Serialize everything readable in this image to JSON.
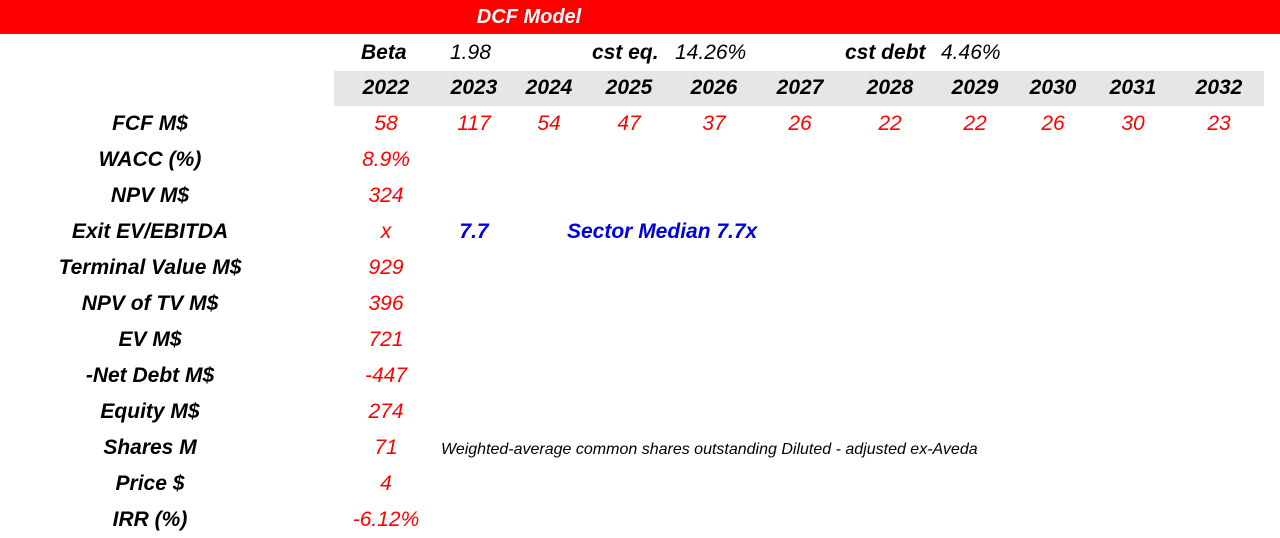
{
  "title": "DCF Model",
  "params": {
    "beta_label": "Beta",
    "beta_value": "1.98",
    "cost_equity_label": "cst eq.",
    "cost_equity_value": "14.26%",
    "cost_debt_label": "cst debt",
    "cost_debt_value": "4.46%"
  },
  "years": [
    "2022",
    "2023",
    "2024",
    "2025",
    "2026",
    "2027",
    "2028",
    "2029",
    "2030",
    "2031",
    "2032"
  ],
  "fcf": {
    "label": "FCF M$",
    "values": [
      "58",
      "117",
      "54",
      "47",
      "37",
      "26",
      "22",
      "22",
      "26",
      "30",
      "23"
    ]
  },
  "rows": {
    "wacc": {
      "label": "WACC (%)",
      "value": "8.9%"
    },
    "npv": {
      "label": "NPV M$",
      "value": "324"
    },
    "exit_multiple": {
      "label": "Exit EV/EBITDA",
      "value": "x",
      "multiple": "7.7",
      "note": "Sector Median 7.7x"
    },
    "terminal_value": {
      "label": "Terminal Value M$",
      "value": "929"
    },
    "npv_tv": {
      "label": "NPV of TV M$",
      "value": "396"
    },
    "ev": {
      "label": "EV M$",
      "value": "721"
    },
    "net_debt": {
      "label": "-Net Debt M$",
      "value": "-447"
    },
    "equity": {
      "label": "Equity M$",
      "value": "274"
    },
    "shares": {
      "label": "Shares M",
      "value": "71",
      "note": "Weighted-average common shares outstanding Diluted - adjusted ex-Aveda"
    },
    "price": {
      "label": "Price $",
      "value": "4"
    },
    "irr": {
      "label": "IRR (%)",
      "value": "-6.12%"
    }
  },
  "colors": {
    "header_bg": "#ff0000",
    "header_text": "#ffffff",
    "value_text": "#ff0000",
    "highlight_text": "#0000dd",
    "year_band": "#e6e6e6"
  }
}
